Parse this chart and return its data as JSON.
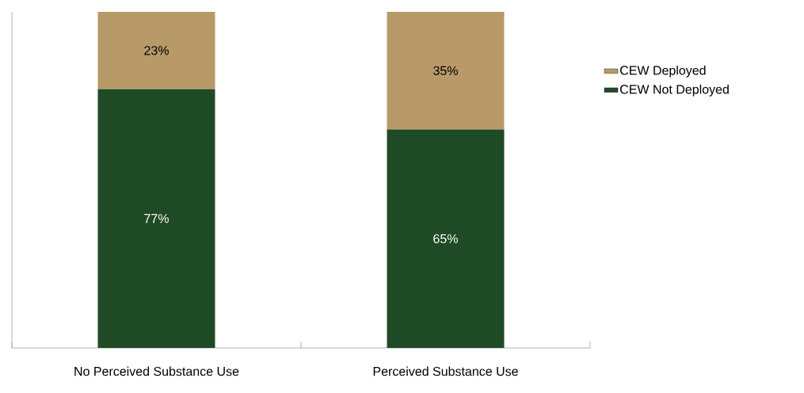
{
  "chart_data": {
    "type": "bar",
    "stacked": true,
    "categories": [
      "No Perceived Substance Use",
      "Perceived Substance Use"
    ],
    "ylim": [
      0,
      100
    ],
    "legend": "right",
    "series": [
      {
        "name": "CEW Not Deployed",
        "color": "#1f4a26",
        "values": [
          77,
          65
        ],
        "value_labels": [
          "77%",
          "65%"
        ]
      },
      {
        "name": "CEW Deployed",
        "color": "#b89a68",
        "values": [
          23,
          35
        ],
        "value_labels": [
          "23%",
          "35%"
        ]
      }
    ]
  }
}
